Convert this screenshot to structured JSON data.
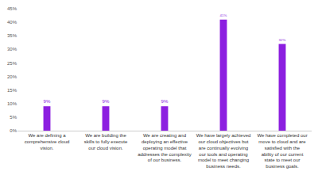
{
  "chart_data": {
    "type": "bar",
    "categories": [
      "We are defining a comprehensive cloud vision.",
      "We are building the skills to fully execute our cloud vision.",
      "We are creating and deploying an effective operating model that addresses the complexity of our business.",
      "We have largely achieved our cloud objectives but are continually evolving our tools and operating model to meet changing business needs.",
      "We have completed our move to cloud and are satisfied with the ability of our current state to meet our business goals."
    ],
    "values": [
      9,
      9,
      9,
      41,
      32
    ],
    "value_labels": [
      "9%",
      "9%",
      "9%",
      "41%",
      "32%"
    ],
    "data_labels": true,
    "color": "#8c1fe0",
    "ylim": [
      0,
      45
    ],
    "yticks": [
      {
        "value": 0,
        "label": "0%"
      },
      {
        "value": 5,
        "label": "5%"
      },
      {
        "value": 10,
        "label": "10%"
      },
      {
        "value": 15,
        "label": "15%"
      },
      {
        "value": 20,
        "label": "20%"
      },
      {
        "value": 25,
        "label": "25%"
      },
      {
        "value": 30,
        "label": "30%"
      },
      {
        "value": 35,
        "label": "35%"
      },
      {
        "value": 40,
        "label": "40%"
      },
      {
        "value": 45,
        "label": "45%"
      }
    ],
    "grid": false
  }
}
